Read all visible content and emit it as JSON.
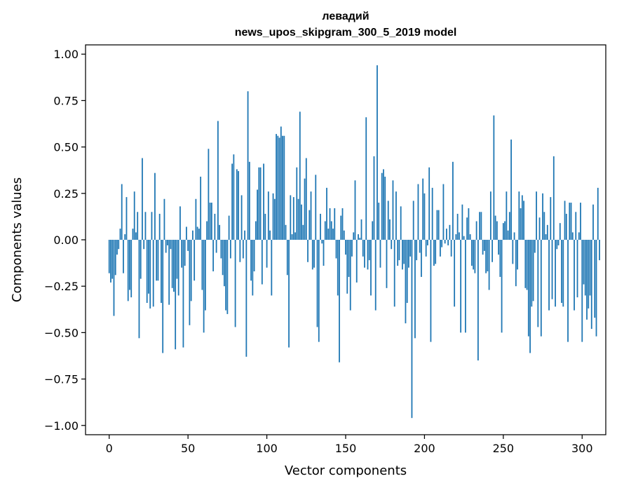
{
  "chart_data": {
    "type": "bar",
    "title": "левадий",
    "subtitle": "news_upos_skipgram_300_5_2019 model",
    "xlabel": "Vector components",
    "ylabel": "Components values",
    "xlim": [
      -15,
      315
    ],
    "ylim": [
      -1.05,
      1.05
    ],
    "xticks": [
      0,
      50,
      100,
      150,
      200,
      250,
      300
    ],
    "xtick_labels": [
      "0",
      "50",
      "100",
      "150",
      "200",
      "250",
      "300"
    ],
    "yticks": [
      1.0,
      0.75,
      0.5,
      0.25,
      0.0,
      -0.25,
      -0.5,
      -0.75,
      -1.0
    ],
    "ytick_labels": [
      "1.00",
      "0.75",
      "0.50",
      "0.25",
      "0.00",
      "−0.25",
      "−0.50",
      "−0.75",
      "−1.00"
    ],
    "grid": false,
    "bar_color": "#1f77b4",
    "values": [
      -0.18,
      -0.23,
      -0.21,
      -0.41,
      -0.19,
      -0.08,
      -0.05,
      0.06,
      0.3,
      -0.18,
      0.03,
      0.23,
      -0.33,
      -0.27,
      -0.31,
      0.06,
      0.26,
      0.04,
      0.15,
      -0.53,
      -0.21,
      0.44,
      -0.05,
      0.15,
      -0.34,
      -0.29,
      -0.37,
      0.15,
      -0.36,
      0.36,
      -0.22,
      -0.22,
      0.14,
      -0.34,
      -0.61,
      0.22,
      -0.07,
      -0.03,
      -0.35,
      -0.05,
      -0.26,
      -0.28,
      -0.59,
      -0.21,
      -0.3,
      0.18,
      -0.15,
      -0.58,
      -0.14,
      0.07,
      -0.06,
      -0.46,
      -0.33,
      0.05,
      -0.22,
      0.22,
      0.07,
      0.06,
      0.34,
      -0.27,
      -0.5,
      -0.38,
      0.1,
      0.49,
      0.2,
      0.2,
      -0.17,
      0.14,
      -0.07,
      0.64,
      0.08,
      -0.1,
      -0.19,
      -0.25,
      -0.38,
      -0.4,
      0.13,
      -0.1,
      0.41,
      0.46,
      -0.47,
      0.38,
      0.37,
      -0.12,
      0.24,
      -0.1,
      0.05,
      -0.63,
      0.8,
      0.42,
      -0.22,
      -0.3,
      -0.17,
      0.1,
      0.27,
      0.39,
      0.39,
      -0.24,
      0.41,
      0.14,
      -0.15,
      0.26,
      0.05,
      -0.3,
      0.25,
      0.22,
      0.57,
      0.56,
      0.55,
      0.61,
      0.56,
      0.56,
      0.08,
      -0.19,
      -0.58,
      0.24,
      0.03,
      0.23,
      0.04,
      0.39,
      0.22,
      0.69,
      0.19,
      0.08,
      0.33,
      0.44,
      -0.12,
      0.16,
      0.26,
      -0.16,
      -0.15,
      0.35,
      -0.47,
      -0.55,
      0.14,
      -0.02,
      -0.14,
      0.1,
      0.28,
      0.06,
      0.17,
      0.1,
      0.06,
      0.17,
      -0.1,
      -0.3,
      -0.66,
      0.13,
      0.17,
      0.05,
      -0.08,
      -0.29,
      -0.2,
      -0.38,
      -0.09,
      0.04,
      0.32,
      -0.23,
      0.03,
      0.01,
      0.11,
      -0.09,
      -0.15,
      0.66,
      -0.16,
      -0.11,
      -0.3,
      0.1,
      0.45,
      -0.38,
      0.94,
      0.2,
      -0.15,
      0.36,
      0.38,
      0.34,
      -0.26,
      0.21,
      0.11,
      -0.05,
      0.32,
      -0.36,
      0.26,
      -0.14,
      -0.11,
      0.18,
      -0.16,
      -0.13,
      -0.45,
      -0.34,
      -0.15,
      -0.09,
      -0.96,
      0.21,
      -0.53,
      -0.11,
      0.3,
      -0.07,
      -0.2,
      0.33,
      0.25,
      -0.09,
      -0.03,
      0.39,
      -0.55,
      0.28,
      -0.14,
      -0.13,
      0.16,
      0.16,
      -0.09,
      -0.04,
      0.3,
      -0.02,
      0.06,
      -0.03,
      0.08,
      -0.09,
      0.42,
      -0.36,
      0.03,
      0.14,
      0.04,
      -0.5,
      0.19,
      0.02,
      -0.5,
      0.12,
      0.17,
      0.03,
      -0.14,
      -0.16,
      -0.18,
      0.1,
      -0.65,
      0.15,
      0.15,
      -0.08,
      -0.06,
      -0.18,
      -0.17,
      -0.27,
      0.26,
      -0.12,
      0.67,
      0.13,
      0.1,
      -0.08,
      -0.2,
      -0.5,
      0.09,
      0.1,
      0.26,
      0.05,
      0.15,
      0.54,
      -0.13,
      0.04,
      -0.25,
      -0.16,
      0.26,
      0.17,
      0.24,
      0.21,
      -0.26,
      -0.27,
      -0.52,
      -0.61,
      -0.36,
      -0.33,
      -0.07,
      0.26,
      -0.47,
      0.12,
      -0.52,
      0.25,
      0.15,
      0.03,
      0.08,
      -0.38,
      0.23,
      -0.32,
      0.45,
      -0.36,
      -0.05,
      -0.03,
      0.09,
      -0.34,
      -0.36,
      0.21,
      0.14,
      -0.55,
      0.2,
      0.2,
      0.04,
      -0.38,
      0.15,
      -0.31,
      0.04,
      0.2,
      -0.55,
      -0.24,
      -0.3,
      -0.43,
      -0.37,
      -0.3,
      -0.48,
      0.19,
      -0.42,
      -0.52,
      0.28,
      -0.11
    ]
  }
}
